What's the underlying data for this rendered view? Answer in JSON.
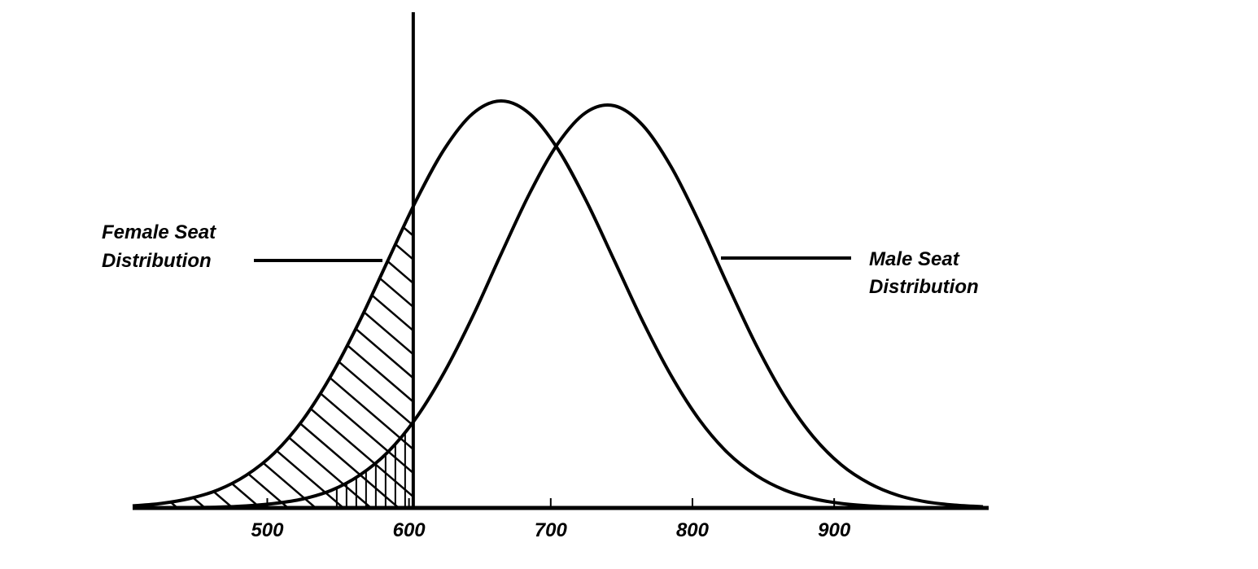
{
  "chart_data": {
    "type": "line",
    "x": [
      405,
      425,
      445,
      465,
      485,
      505,
      525,
      545,
      565,
      585,
      605,
      625,
      645,
      665,
      685,
      705,
      725,
      745,
      765,
      785,
      805,
      825,
      845,
      865,
      885,
      905,
      925,
      945,
      965,
      985,
      1005
    ],
    "series": [
      {
        "name": "Female Seat Distribution",
        "label_lines": [
          "Female Seat",
          "Distribution"
        ],
        "color": "#000000",
        "values": [
          0.5,
          1.1,
          2.3,
          4.4,
          8.0,
          13.5,
          21.6,
          32.5,
          45.8,
          60.7,
          75.5,
          88.2,
          96.9,
          100,
          96.9,
          88.2,
          75.5,
          60.7,
          45.8,
          32.5,
          21.6,
          13.5,
          8.0,
          4.4,
          2.3,
          1.1,
          0.5,
          0.2,
          0.1,
          0.0,
          0.0
        ]
      },
      {
        "name": "Male Seat Distribution",
        "label_lines": [
          "Male Seat",
          "Distribution"
        ],
        "color": "#000000",
        "values": [
          0.0,
          0.0,
          0.1,
          0.2,
          0.5,
          1.1,
          2.2,
          4.3,
          8.0,
          13.7,
          22.1,
          33.4,
          47.1,
          62.4,
          77.2,
          89.5,
          97.2,
          98.8,
          94.0,
          83.8,
          70.0,
          54.7,
          40.0,
          27.4,
          17.6,
          10.6,
          6.0,
          3.1,
          1.5,
          0.7,
          0.3
        ]
      }
    ],
    "cutoff": 603,
    "xlim": [
      405,
      1009
    ],
    "xticks": [
      500,
      600,
      700,
      800,
      900
    ],
    "ylim": [
      0,
      104.8
    ]
  }
}
